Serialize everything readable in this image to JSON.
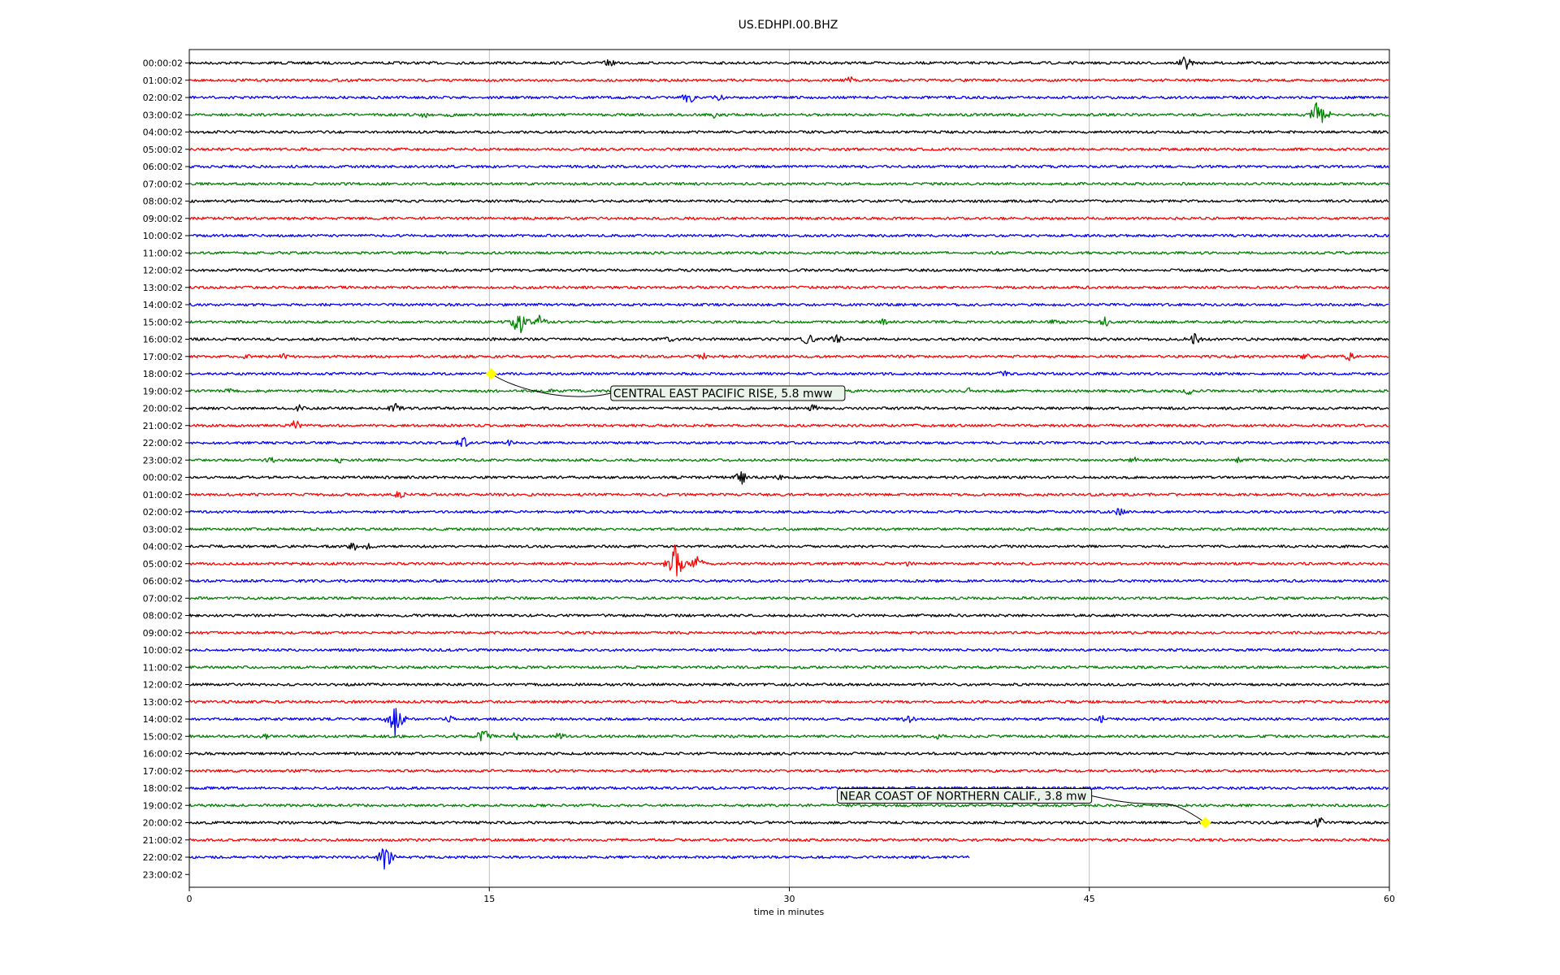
{
  "chart_data": {
    "type": "line",
    "title": "US.EDHPI.00.BHZ",
    "xlabel": "time in minutes",
    "ylabel": "",
    "xlim": [
      0,
      60
    ],
    "xticks": [
      "0",
      "15",
      "30",
      "45",
      "60"
    ],
    "grid_x": true,
    "row_labels": [
      "00:00:02",
      "01:00:02",
      "02:00:02",
      "03:00:02",
      "04:00:02",
      "05:00:02",
      "06:00:02",
      "07:00:02",
      "08:00:02",
      "09:00:02",
      "10:00:02",
      "11:00:02",
      "12:00:02",
      "13:00:02",
      "14:00:02",
      "15:00:02",
      "16:00:02",
      "17:00:02",
      "18:00:02",
      "19:00:02",
      "20:00:02",
      "21:00:02",
      "22:00:02",
      "23:00:02",
      "00:00:02",
      "01:00:02",
      "02:00:02",
      "03:00:02",
      "04:00:02",
      "05:00:02",
      "06:00:02",
      "07:00:02",
      "08:00:02",
      "09:00:02",
      "10:00:02",
      "11:00:02",
      "12:00:02",
      "13:00:02",
      "14:00:02",
      "15:00:02",
      "16:00:02",
      "17:00:02",
      "18:00:02",
      "19:00:02",
      "20:00:02",
      "21:00:02",
      "22:00:02",
      "23:00:02"
    ],
    "row_colors": [
      "#000000",
      "#ff0000",
      "#0000ff",
      "#008000"
    ],
    "last_trace_end_minute": 39.0,
    "bursts": [
      {
        "row": 0,
        "minute": 21,
        "amp": 6
      },
      {
        "row": 0,
        "minute": 49.8,
        "amp": 10
      },
      {
        "row": 1,
        "minute": 33,
        "amp": 6
      },
      {
        "row": 2,
        "minute": 25,
        "amp": 10
      },
      {
        "row": 2,
        "minute": 26.5,
        "amp": 6
      },
      {
        "row": 3,
        "minute": 11.8,
        "amp": 5
      },
      {
        "row": 3,
        "minute": 13,
        "amp": 4
      },
      {
        "row": 3,
        "minute": 26.2,
        "amp": 6
      },
      {
        "row": 3,
        "minute": 56.5,
        "amp": 26
      },
      {
        "row": 15,
        "minute": 16.5,
        "amp": 22
      },
      {
        "row": 15,
        "minute": 17.5,
        "amp": 10
      },
      {
        "row": 15,
        "minute": 34.7,
        "amp": 5
      },
      {
        "row": 15,
        "minute": 43.3,
        "amp": 5
      },
      {
        "row": 15,
        "minute": 45.8,
        "amp": 7
      },
      {
        "row": 16,
        "minute": 24,
        "amp": 5
      },
      {
        "row": 16,
        "minute": 31,
        "amp": 10
      },
      {
        "row": 16,
        "minute": 32.3,
        "amp": 8
      },
      {
        "row": 16,
        "minute": 50.2,
        "amp": 10
      },
      {
        "row": 17,
        "minute": 2.8,
        "amp": 5
      },
      {
        "row": 17,
        "minute": 4.7,
        "amp": 5
      },
      {
        "row": 17,
        "minute": 25.7,
        "amp": 5
      },
      {
        "row": 17,
        "minute": 55.8,
        "amp": 5
      },
      {
        "row": 17,
        "minute": 58,
        "amp": 6
      },
      {
        "row": 18,
        "minute": 40.7,
        "amp": 5
      },
      {
        "row": 19,
        "minute": 2,
        "amp": 4
      },
      {
        "row": 19,
        "minute": 18,
        "amp": 5
      },
      {
        "row": 19,
        "minute": 39,
        "amp": 5
      },
      {
        "row": 19,
        "minute": 50,
        "amp": 6
      },
      {
        "row": 20,
        "minute": 5.5,
        "amp": 6
      },
      {
        "row": 20,
        "minute": 10.3,
        "amp": 8
      },
      {
        "row": 20,
        "minute": 31.2,
        "amp": 6
      },
      {
        "row": 21,
        "minute": 5.3,
        "amp": 9
      },
      {
        "row": 22,
        "minute": 13.7,
        "amp": 8
      },
      {
        "row": 22,
        "minute": 16,
        "amp": 5
      },
      {
        "row": 23,
        "minute": 4,
        "amp": 7
      },
      {
        "row": 23,
        "minute": 7.5,
        "amp": 5
      },
      {
        "row": 23,
        "minute": 47.2,
        "amp": 5
      },
      {
        "row": 23,
        "minute": 52.5,
        "amp": 5
      },
      {
        "row": 24,
        "minute": 27.6,
        "amp": 10
      },
      {
        "row": 24,
        "minute": 29.5,
        "amp": 5
      },
      {
        "row": 25,
        "minute": 10.5,
        "amp": 6
      },
      {
        "row": 26,
        "minute": 46.5,
        "amp": 6
      },
      {
        "row": 28,
        "minute": 8.2,
        "amp": 7
      },
      {
        "row": 28,
        "minute": 8.9,
        "amp": 5
      },
      {
        "row": 29,
        "minute": 24.3,
        "amp": 26
      },
      {
        "row": 29,
        "minute": 25.4,
        "amp": 10
      },
      {
        "row": 29,
        "minute": 36,
        "amp": 5
      },
      {
        "row": 38,
        "minute": 10.3,
        "amp": 24
      },
      {
        "row": 38,
        "minute": 13,
        "amp": 5
      },
      {
        "row": 38,
        "minute": 36,
        "amp": 7
      },
      {
        "row": 38,
        "minute": 45.6,
        "amp": 6
      },
      {
        "row": 39,
        "minute": 3.8,
        "amp": 5
      },
      {
        "row": 39,
        "minute": 14.7,
        "amp": 12
      },
      {
        "row": 39,
        "minute": 16.3,
        "amp": 6
      },
      {
        "row": 39,
        "minute": 18.5,
        "amp": 6
      },
      {
        "row": 39,
        "minute": 37.5,
        "amp": 5
      },
      {
        "row": 44,
        "minute": 56.5,
        "amp": 9
      },
      {
        "row": 46,
        "minute": 9.8,
        "amp": 18
      }
    ],
    "events": [
      {
        "label": "CENTRAL EAST PACIFIC RISE, 5.8 mww",
        "row": 18,
        "minute": 15.1
      },
      {
        "label": "NEAR COAST OF NORTHERN CALIF., 3.8 mw",
        "row": 44,
        "minute": 50.8
      }
    ],
    "marker_color": "#ffff00",
    "annotation_box_fill": "#eaf3ea"
  }
}
